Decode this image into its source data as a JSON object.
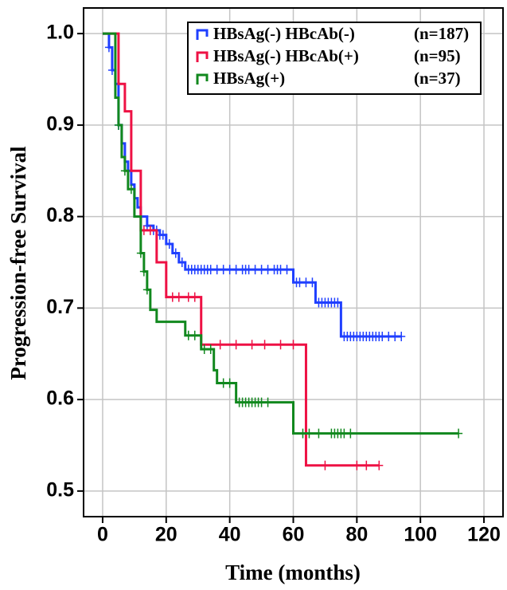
{
  "chart_data": {
    "type": "step",
    "x_label": "Time (months)",
    "y_label": "Progression-free Survival",
    "xlim": [
      -6,
      126
    ],
    "ylim": [
      0.472,
      1.028
    ],
    "xticks": [
      0,
      20,
      40,
      60,
      80,
      100,
      120
    ],
    "yticks": [
      0.5,
      0.6,
      0.7,
      0.8,
      0.9,
      {
        "value": 1,
        "label": "1.0"
      }
    ],
    "grid": true,
    "legend_position": "upper right",
    "series": [
      {
        "name": "HBsAg(-) HBcAb(-)",
        "n_label": "(n=187)",
        "color": "#1f3fff",
        "x": [
          0,
          2,
          3,
          4,
          5,
          6,
          7,
          8,
          9,
          10,
          11,
          12,
          14,
          16,
          18,
          20,
          22,
          24,
          26,
          60,
          67,
          75,
          94
        ],
        "values": [
          1,
          0.985,
          0.96,
          0.945,
          0.9,
          0.88,
          0.86,
          0.85,
          0.835,
          0.82,
          0.81,
          0.8,
          0.79,
          0.785,
          0.78,
          0.77,
          0.76,
          0.75,
          0.742,
          0.728,
          0.706,
          0.669,
          0.669
        ],
        "censored": [
          2,
          3,
          5,
          12,
          14,
          16,
          17,
          18,
          19,
          21,
          23,
          25,
          27,
          28,
          29,
          30,
          31,
          32,
          33,
          34,
          36,
          38,
          40,
          42,
          44,
          45,
          46,
          48,
          50,
          52,
          54,
          55,
          56,
          58,
          61,
          62,
          64,
          66,
          68,
          69,
          70,
          71,
          72,
          73,
          74,
          76,
          77,
          78,
          79,
          80,
          81,
          82,
          83,
          84,
          85,
          86,
          87,
          88,
          90,
          92,
          94
        ]
      },
      {
        "name": "HBsAg(-) HBcAb(+)",
        "n_label": "(n=95)",
        "color": "#ee1144",
        "x": [
          0,
          5,
          7,
          9,
          12,
          17,
          20,
          31,
          64,
          87
        ],
        "values": [
          1,
          0.945,
          0.915,
          0.85,
          0.785,
          0.75,
          0.712,
          0.66,
          0.528,
          0.528
        ],
        "censored": [
          13,
          15,
          22,
          24,
          27,
          29,
          37,
          42,
          47,
          51,
          56,
          60,
          70,
          80,
          83,
          87
        ]
      },
      {
        "name": "HBsAg(+)",
        "n_label": "(n=37)",
        "color": "#11881e",
        "x": [
          0,
          4,
          5,
          6,
          7,
          8,
          10,
          12,
          13,
          14,
          15,
          17,
          26,
          31,
          35,
          36,
          42,
          60,
          112
        ],
        "values": [
          1,
          0.93,
          0.9,
          0.865,
          0.85,
          0.83,
          0.8,
          0.76,
          0.74,
          0.72,
          0.698,
          0.685,
          0.67,
          0.655,
          0.632,
          0.618,
          0.597,
          0.563,
          0.563
        ],
        "censored": [
          5,
          7,
          9,
          12,
          13,
          14,
          27,
          29,
          32,
          34,
          38,
          40,
          43,
          44,
          45,
          46,
          47,
          48,
          49,
          50,
          52,
          63,
          65,
          68,
          72,
          73,
          74,
          75,
          76,
          78,
          112
        ]
      }
    ]
  }
}
